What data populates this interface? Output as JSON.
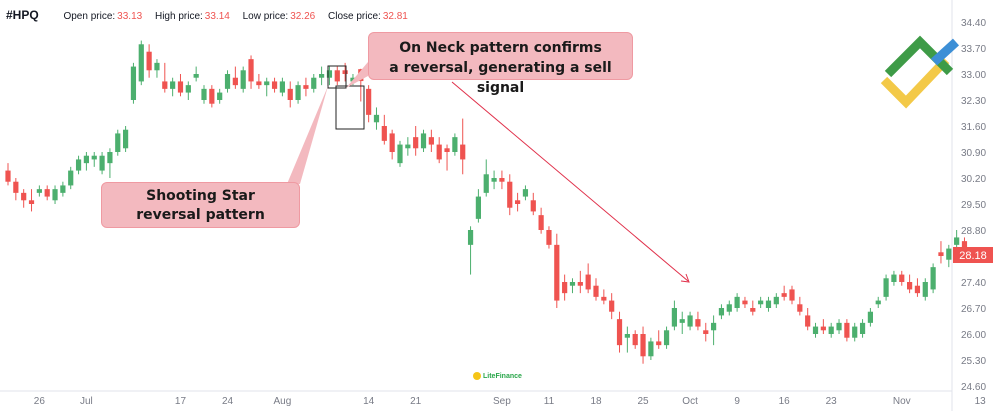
{
  "header": {
    "symbol": "#HPQ",
    "open_label": "Open price:",
    "open_value": "33.13",
    "high_label": "High price:",
    "high_value": "33.14",
    "low_label": "Low price:",
    "low_value": "32.26",
    "close_label": "Close price:",
    "close_value": "32.81"
  },
  "callouts": {
    "neck_line1": "On Neck pattern confirms",
    "neck_line2": "a reversal, generating a sell signal",
    "star_line1": "Shooting Star",
    "star_line2": "reversal pattern"
  },
  "watermark": "LiteFinance",
  "colors": {
    "up": "#26a69a",
    "up_fill": "#4caf6e",
    "down": "#ef5350",
    "callout_bg": "#f3b9bf",
    "arrow": "#e0304a",
    "price_tag": "#ef5350"
  },
  "logo_icon": "litefinance-logo-icon",
  "chart_data": {
    "type": "candlestick",
    "symbol": "#HPQ",
    "y_ticks": [
      "34.40",
      "33.70",
      "33.00",
      "32.30",
      "31.60",
      "30.90",
      "30.20",
      "29.50",
      "28.80",
      "28.10",
      "27.40",
      "26.70",
      "26.00",
      "25.30",
      "24.60"
    ],
    "ylim": [
      24.6,
      34.6
    ],
    "x_tick_labels": [
      "26",
      "Jul",
      "17",
      "24",
      "Aug",
      "14",
      "21",
      "Sep",
      "11",
      "18",
      "25",
      "Oct",
      "9",
      "16",
      "23",
      "Nov",
      "13"
    ],
    "x_tick_index": [
      4,
      10,
      22,
      28,
      35,
      46,
      52,
      63,
      69,
      75,
      81,
      87,
      93,
      99,
      105,
      114,
      124
    ],
    "last_price": "28.18",
    "grid": false,
    "candles": [
      [
        30.4,
        30.6,
        30.0,
        30.1
      ],
      [
        30.1,
        30.2,
        29.6,
        29.8
      ],
      [
        29.8,
        29.9,
        29.4,
        29.6
      ],
      [
        29.6,
        29.9,
        29.3,
        29.5
      ],
      [
        29.8,
        30.0,
        29.7,
        29.9
      ],
      [
        29.9,
        30.0,
        29.6,
        29.7
      ],
      [
        29.6,
        30.0,
        29.5,
        29.9
      ],
      [
        29.8,
        30.1,
        29.7,
        30.0
      ],
      [
        30.0,
        30.5,
        29.9,
        30.4
      ],
      [
        30.4,
        30.8,
        30.3,
        30.7
      ],
      [
        30.6,
        30.9,
        30.4,
        30.8
      ],
      [
        30.7,
        30.9,
        30.5,
        30.8
      ],
      [
        30.4,
        30.9,
        30.3,
        30.8
      ],
      [
        30.6,
        31.0,
        30.2,
        30.9
      ],
      [
        30.9,
        31.5,
        30.8,
        31.4
      ],
      [
        31.0,
        31.6,
        30.9,
        31.5
      ],
      [
        32.3,
        33.3,
        32.2,
        33.2
      ],
      [
        32.8,
        33.9,
        32.7,
        33.8
      ],
      [
        33.6,
        33.8,
        32.9,
        33.1
      ],
      [
        33.1,
        33.4,
        32.9,
        33.3
      ],
      [
        32.8,
        33.3,
        32.5,
        32.6
      ],
      [
        32.6,
        32.9,
        32.4,
        32.8
      ],
      [
        32.8,
        33.0,
        32.4,
        32.5
      ],
      [
        32.5,
        32.8,
        32.3,
        32.7
      ],
      [
        32.9,
        33.2,
        32.8,
        33.0
      ],
      [
        32.3,
        32.7,
        32.2,
        32.6
      ],
      [
        32.6,
        32.7,
        32.1,
        32.2
      ],
      [
        32.3,
        32.6,
        32.2,
        32.5
      ],
      [
        32.6,
        33.1,
        32.5,
        33.0
      ],
      [
        32.9,
        33.2,
        32.6,
        32.7
      ],
      [
        32.6,
        33.2,
        32.5,
        33.1
      ],
      [
        33.4,
        33.5,
        32.6,
        32.8
      ],
      [
        32.8,
        33.0,
        32.6,
        32.7
      ],
      [
        32.7,
        32.9,
        32.4,
        32.8
      ],
      [
        32.8,
        32.9,
        32.5,
        32.6
      ],
      [
        32.5,
        32.9,
        32.4,
        32.8
      ],
      [
        32.6,
        32.8,
        32.1,
        32.3
      ],
      [
        32.3,
        32.8,
        32.2,
        32.7
      ],
      [
        32.7,
        32.9,
        32.4,
        32.6
      ],
      [
        32.6,
        33.0,
        32.5,
        32.9
      ],
      [
        32.9,
        33.2,
        32.7,
        33.0
      ],
      [
        32.9,
        33.2,
        32.7,
        33.1
      ],
      [
        33.1,
        33.2,
        32.7,
        32.8
      ],
      [
        33.1,
        33.3,
        32.8,
        33.0
      ],
      [
        32.8,
        33.0,
        32.7,
        32.9
      ],
      [
        33.13,
        33.14,
        32.26,
        32.81
      ],
      [
        32.6,
        32.7,
        31.7,
        31.9
      ],
      [
        31.7,
        32.1,
        31.5,
        31.9
      ],
      [
        31.6,
        31.9,
        31.1,
        31.2
      ],
      [
        31.4,
        31.5,
        30.7,
        30.9
      ],
      [
        30.6,
        31.2,
        30.5,
        31.1
      ],
      [
        31.0,
        31.3,
        30.8,
        31.1
      ],
      [
        31.3,
        31.6,
        30.8,
        31.0
      ],
      [
        31.0,
        31.5,
        30.9,
        31.4
      ],
      [
        31.3,
        31.5,
        30.9,
        31.1
      ],
      [
        31.1,
        31.3,
        30.6,
        30.7
      ],
      [
        31.0,
        31.1,
        30.4,
        30.9
      ],
      [
        30.9,
        31.4,
        30.8,
        31.3
      ],
      [
        31.1,
        31.8,
        30.3,
        30.7
      ],
      [
        28.4,
        28.9,
        27.6,
        28.8
      ],
      [
        29.1,
        29.9,
        29.0,
        29.7
      ],
      [
        29.8,
        30.7,
        29.7,
        30.3
      ],
      [
        30.1,
        30.4,
        29.9,
        30.2
      ],
      [
        30.2,
        30.4,
        29.9,
        30.1
      ],
      [
        30.1,
        30.3,
        29.2,
        29.4
      ],
      [
        29.6,
        29.8,
        29.3,
        29.5
      ],
      [
        29.7,
        30.0,
        29.6,
        29.9
      ],
      [
        29.6,
        29.8,
        29.2,
        29.3
      ],
      [
        29.2,
        29.4,
        28.7,
        28.8
      ],
      [
        28.8,
        28.9,
        28.3,
        28.4
      ],
      [
        28.4,
        28.7,
        26.7,
        26.9
      ],
      [
        27.4,
        27.6,
        26.9,
        27.1
      ],
      [
        27.3,
        27.5,
        27.1,
        27.4
      ],
      [
        27.4,
        27.7,
        27.1,
        27.3
      ],
      [
        27.6,
        27.9,
        27.1,
        27.2
      ],
      [
        27.3,
        27.5,
        26.9,
        27.0
      ],
      [
        27.0,
        27.2,
        26.8,
        26.9
      ],
      [
        26.9,
        27.1,
        26.4,
        26.6
      ],
      [
        26.4,
        26.6,
        25.5,
        25.7
      ],
      [
        25.9,
        26.2,
        25.5,
        26.0
      ],
      [
        26.0,
        26.1,
        25.6,
        25.7
      ],
      [
        26.0,
        26.2,
        25.2,
        25.4
      ],
      [
        25.4,
        25.9,
        25.3,
        25.8
      ],
      [
        25.8,
        26.1,
        25.6,
        25.7
      ],
      [
        25.7,
        26.2,
        25.6,
        26.1
      ],
      [
        26.2,
        26.9,
        26.1,
        26.7
      ],
      [
        26.3,
        26.6,
        26.0,
        26.4
      ],
      [
        26.2,
        26.6,
        26.1,
        26.5
      ],
      [
        26.4,
        26.6,
        26.1,
        26.2
      ],
      [
        26.1,
        26.3,
        25.8,
        26.0
      ],
      [
        26.1,
        26.5,
        25.7,
        26.3
      ],
      [
        26.5,
        26.8,
        26.4,
        26.7
      ],
      [
        26.6,
        26.9,
        26.5,
        26.8
      ],
      [
        26.7,
        27.1,
        26.6,
        27.0
      ],
      [
        26.9,
        27.0,
        26.7,
        26.8
      ],
      [
        26.7,
        26.9,
        26.5,
        26.6
      ],
      [
        26.8,
        27.0,
        26.7,
        26.9
      ],
      [
        26.7,
        27.0,
        26.6,
        26.9
      ],
      [
        26.8,
        27.1,
        26.7,
        27.0
      ],
      [
        27.1,
        27.3,
        26.9,
        27.0
      ],
      [
        27.2,
        27.3,
        26.8,
        26.9
      ],
      [
        26.8,
        27.0,
        26.5,
        26.6
      ],
      [
        26.5,
        26.7,
        26.1,
        26.2
      ],
      [
        26.0,
        26.3,
        25.9,
        26.2
      ],
      [
        26.2,
        26.4,
        26.0,
        26.1
      ],
      [
        26.0,
        26.3,
        25.9,
        26.2
      ],
      [
        26.1,
        26.4,
        26.0,
        26.3
      ],
      [
        26.3,
        26.4,
        25.8,
        25.9
      ],
      [
        25.9,
        26.3,
        25.8,
        26.2
      ],
      [
        26.0,
        26.4,
        25.9,
        26.3
      ],
      [
        26.3,
        26.7,
        26.2,
        26.6
      ],
      [
        26.8,
        27.0,
        26.7,
        26.9
      ],
      [
        27.0,
        27.6,
        26.9,
        27.5
      ],
      [
        27.4,
        27.7,
        27.3,
        27.6
      ],
      [
        27.6,
        27.7,
        27.3,
        27.4
      ],
      [
        27.4,
        27.6,
        27.1,
        27.2
      ],
      [
        27.3,
        27.5,
        27.0,
        27.1
      ],
      [
        27.0,
        27.5,
        26.9,
        27.4
      ],
      [
        27.2,
        27.9,
        27.1,
        27.8
      ],
      [
        28.2,
        28.5,
        27.9,
        28.1
      ],
      [
        28.0,
        28.4,
        27.8,
        28.3
      ],
      [
        28.4,
        28.8,
        28.2,
        28.6
      ],
      [
        28.5,
        28.6,
        28.0,
        28.18
      ]
    ]
  }
}
